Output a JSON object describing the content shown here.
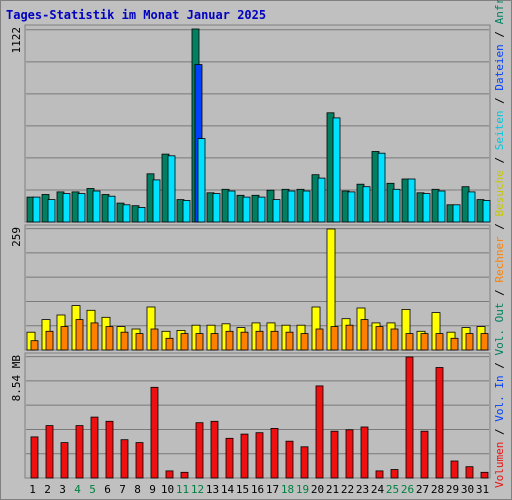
{
  "title": "Tages-Statistik im Monat Januar 2025",
  "colors": {
    "background": "#c0c0c0",
    "plot": "#bdbdbd",
    "title": "#0000c0",
    "hits": "#008060",
    "files": "#0040ff",
    "pages": "#00e0ff",
    "visits": "#ffff00",
    "sites": "#ff8000",
    "volume": "#ee1010",
    "weekend_label": "#008040"
  },
  "chart_data": [
    {
      "type": "bar",
      "panel": "top",
      "ymax_label": "1122",
      "ylim": [
        0,
        1122
      ],
      "grid": true,
      "categories": [
        "1",
        "2",
        "3",
        "4",
        "5",
        "6",
        "7",
        "8",
        "9",
        "10",
        "11",
        "12",
        "13",
        "14",
        "15",
        "16",
        "17",
        "18",
        "19",
        "20",
        "21",
        "22",
        "23",
        "24",
        "25",
        "26",
        "27",
        "28",
        "29",
        "30",
        "31"
      ],
      "weekend_categories": [
        "4",
        "5",
        "11",
        "12",
        "18",
        "19",
        "25",
        "26"
      ],
      "series": [
        {
          "name": "Anfragen",
          "values": [
            145,
            160,
            175,
            175,
            195,
            160,
            110,
            95,
            280,
            395,
            130,
            1122,
            170,
            190,
            155,
            155,
            185,
            190,
            190,
            275,
            635,
            180,
            220,
            410,
            225,
            250,
            170,
            190,
            100,
            205,
            130
          ]
        },
        {
          "name": "Dateien",
          "values": [
            0,
            0,
            0,
            0,
            0,
            0,
            0,
            0,
            0,
            0,
            0,
            915,
            0,
            0,
            0,
            0,
            0,
            0,
            0,
            0,
            0,
            0,
            0,
            0,
            0,
            0,
            0,
            0,
            0,
            0,
            0
          ]
        },
        {
          "name": "Seiten",
          "values": [
            145,
            130,
            165,
            165,
            180,
            150,
            100,
            85,
            245,
            385,
            125,
            485,
            165,
            180,
            145,
            145,
            130,
            180,
            180,
            255,
            605,
            175,
            205,
            400,
            190,
            250,
            165,
            180,
            100,
            175,
            125
          ]
        }
      ],
      "axis_label": "Anfragen / Dateien / Seiten"
    },
    {
      "type": "bar",
      "panel": "middle",
      "ymax_label": "259",
      "ylim": [
        0,
        259
      ],
      "grid": true,
      "categories": [
        "1",
        "2",
        "3",
        "4",
        "5",
        "6",
        "7",
        "8",
        "9",
        "10",
        "11",
        "12",
        "13",
        "14",
        "15",
        "16",
        "17",
        "18",
        "19",
        "20",
        "21",
        "22",
        "23",
        "24",
        "25",
        "26",
        "27",
        "28",
        "29",
        "30",
        "31"
      ],
      "series": [
        {
          "name": "Besuche",
          "values": [
            38,
            65,
            75,
            95,
            85,
            70,
            50,
            45,
            92,
            40,
            42,
            53,
            53,
            56,
            48,
            58,
            58,
            53,
            53,
            92,
            259,
            67,
            90,
            58,
            58,
            87,
            40,
            80,
            38,
            48,
            50
          ]
        },
        {
          "name": "Rechner",
          "values": [
            20,
            40,
            50,
            65,
            58,
            50,
            38,
            35,
            45,
            25,
            35,
            35,
            35,
            40,
            38,
            40,
            40,
            38,
            35,
            45,
            50,
            53,
            65,
            50,
            45,
            35,
            35,
            35,
            25,
            35,
            35
          ]
        }
      ],
      "axis_label": "Besuche / Rechner / Vol. Out"
    },
    {
      "type": "bar",
      "panel": "bottom",
      "ymax_label": "8.54 MB",
      "unit": "MB",
      "ylim": [
        0,
        8.54
      ],
      "grid": true,
      "categories": [
        "1",
        "2",
        "3",
        "4",
        "5",
        "6",
        "7",
        "8",
        "9",
        "10",
        "11",
        "12",
        "13",
        "14",
        "15",
        "16",
        "17",
        "18",
        "19",
        "20",
        "21",
        "22",
        "23",
        "24",
        "25",
        "26",
        "27",
        "28",
        "29",
        "30",
        "31"
      ],
      "series": [
        {
          "name": "Volumen",
          "values": [
            2.9,
            3.7,
            2.5,
            3.7,
            4.3,
            4.0,
            2.7,
            2.5,
            6.4,
            0.5,
            0.4,
            3.9,
            4.0,
            2.8,
            3.1,
            3.2,
            3.5,
            2.6,
            2.2,
            6.5,
            3.3,
            3.4,
            3.6,
            0.5,
            0.6,
            8.54,
            3.3,
            7.8,
            1.2,
            0.8,
            0.4
          ]
        }
      ],
      "axis_label": "Volumen / Vol. In / Vol. Out"
    }
  ],
  "right_legend": [
    {
      "text": "Volumen",
      "color": "#ee1010"
    },
    {
      "text": " / ",
      "color": "#000000"
    },
    {
      "text": "Vol. In",
      "color": "#0040ff"
    },
    {
      "text": " / ",
      "color": "#000000"
    },
    {
      "text": "Vol. Out",
      "color": "#008060"
    },
    {
      "text": " / ",
      "color": "#000000"
    },
    {
      "text": "Rechner",
      "color": "#ff8000"
    },
    {
      "text": " / ",
      "color": "#000000"
    },
    {
      "text": "Besuche",
      "color": "#c8c800"
    },
    {
      "text": " / ",
      "color": "#000000"
    },
    {
      "text": "Seiten",
      "color": "#00c8e0"
    },
    {
      "text": " / ",
      "color": "#000000"
    },
    {
      "text": "Dateien",
      "color": "#0040ff"
    },
    {
      "text": " / ",
      "color": "#000000"
    },
    {
      "text": "Anfragen",
      "color": "#008060"
    }
  ]
}
